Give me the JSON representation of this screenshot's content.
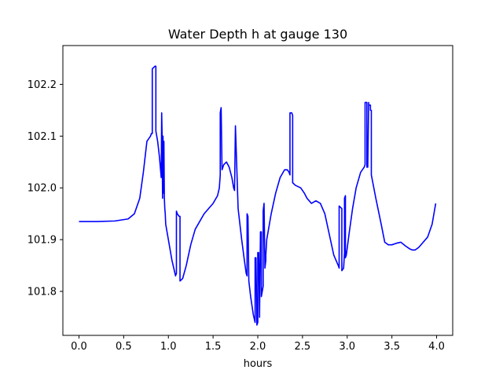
{
  "chart_data": {
    "type": "line",
    "title": "Water Depth h at gauge 130",
    "xlabel": "hours",
    "ylabel": "",
    "xlim": [
      -0.18,
      4.18
    ],
    "ylim": [
      101.715,
      102.275
    ],
    "xticks": [
      0.0,
      0.5,
      1.0,
      1.5,
      2.0,
      2.5,
      3.0,
      3.5,
      4.0
    ],
    "xtick_labels": [
      "0.0",
      "0.5",
      "1.0",
      "1.5",
      "2.0",
      "2.5",
      "3.0",
      "3.5",
      "4.0"
    ],
    "yticks": [
      101.8,
      101.9,
      102.0,
      102.1,
      102.2
    ],
    "ytick_labels": [
      "101.8",
      "101.9",
      "102.0",
      "102.1",
      "102.2"
    ],
    "grid": false,
    "series": [
      {
        "color": "#0000ff",
        "x": [
          0.0,
          0.2,
          0.4,
          0.55,
          0.62,
          0.68,
          0.72,
          0.76,
          0.8,
          0.81,
          0.82,
          0.82,
          0.85,
          0.86,
          0.86,
          0.88,
          0.9,
          0.92,
          0.925,
          0.93,
          0.935,
          0.94,
          0.945,
          0.95,
          0.955,
          0.96,
          0.965,
          0.97,
          1.0,
          1.04,
          1.08,
          1.09,
          1.09,
          1.1,
          1.12,
          1.13,
          1.13,
          1.16,
          1.2,
          1.25,
          1.3,
          1.4,
          1.5,
          1.55,
          1.57,
          1.58,
          1.58,
          1.59,
          1.6,
          1.62,
          1.65,
          1.68,
          1.71,
          1.72,
          1.73,
          1.74,
          1.75,
          1.78,
          1.82,
          1.85,
          1.87,
          1.88,
          1.88,
          1.89,
          1.9,
          1.92,
          1.95,
          1.97,
          1.97,
          1.98,
          1.99,
          2.0,
          2.0,
          2.01,
          2.02,
          2.02,
          2.03,
          2.04,
          2.04,
          2.05,
          2.06,
          2.06,
          2.07,
          2.08,
          2.09,
          2.09,
          2.1,
          2.15,
          2.2,
          2.25,
          2.3,
          2.33,
          2.35,
          2.36,
          2.36,
          2.38,
          2.39,
          2.39,
          2.42,
          2.48,
          2.52,
          2.55,
          2.6,
          2.65,
          2.7,
          2.75,
          2.8,
          2.85,
          2.9,
          2.91,
          2.91,
          2.94,
          2.94,
          2.96,
          2.97,
          2.97,
          2.98,
          2.98,
          2.99,
          3.02,
          3.06,
          3.1,
          3.15,
          3.19,
          3.2,
          3.2,
          3.22,
          3.22,
          3.23,
          3.24,
          3.24,
          3.26,
          3.26,
          3.27,
          3.27,
          3.32,
          3.38,
          3.42,
          3.46,
          3.5,
          3.55,
          3.6,
          3.65,
          3.7,
          3.73,
          3.76,
          3.8,
          3.85,
          3.9,
          3.95,
          3.99
        ],
        "y": [
          101.935,
          101.935,
          101.936,
          101.94,
          101.95,
          101.98,
          102.03,
          102.09,
          102.1,
          102.105,
          102.105,
          102.23,
          102.235,
          102.235,
          102.11,
          102.09,
          102.06,
          102.02,
          102.145,
          102.1,
          101.98,
          102.1,
          101.99,
          102.09,
          101.98,
          101.96,
          101.95,
          101.93,
          101.9,
          101.86,
          101.83,
          101.835,
          101.955,
          101.95,
          101.945,
          101.945,
          101.82,
          101.825,
          101.85,
          101.89,
          101.92,
          101.95,
          101.97,
          101.985,
          102.0,
          102.025,
          102.145,
          102.155,
          102.035,
          102.045,
          102.05,
          102.04,
          102.02,
          102.01,
          102.0,
          101.995,
          102.12,
          101.96,
          101.9,
          101.86,
          101.835,
          101.83,
          101.95,
          101.945,
          101.82,
          101.79,
          101.755,
          101.74,
          101.865,
          101.865,
          101.735,
          101.74,
          101.875,
          101.875,
          101.75,
          101.76,
          101.915,
          101.915,
          101.79,
          101.8,
          101.81,
          101.955,
          101.97,
          101.845,
          101.86,
          101.87,
          101.9,
          101.95,
          101.99,
          102.02,
          102.035,
          102.035,
          102.03,
          102.025,
          102.145,
          102.145,
          102.14,
          102.01,
          102.005,
          102.0,
          101.99,
          101.98,
          101.97,
          101.975,
          101.97,
          101.95,
          101.91,
          101.87,
          101.85,
          101.845,
          101.965,
          101.96,
          101.84,
          101.845,
          101.875,
          101.98,
          101.985,
          101.865,
          101.87,
          101.91,
          101.96,
          102.0,
          102.03,
          102.04,
          102.045,
          102.165,
          102.165,
          102.04,
          102.04,
          102.165,
          102.16,
          102.16,
          102.15,
          102.15,
          102.025,
          101.98,
          101.93,
          101.895,
          101.89,
          101.89,
          101.893,
          101.895,
          101.888,
          101.882,
          101.88,
          101.88,
          101.885,
          101.895,
          101.905,
          101.93,
          101.97
        ]
      }
    ]
  }
}
